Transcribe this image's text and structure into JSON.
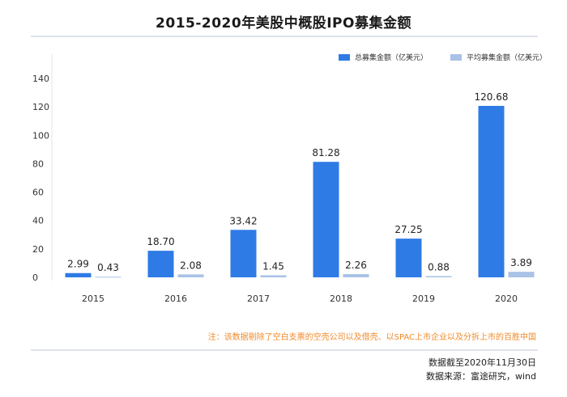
{
  "title": "2015-2020年美股中概股IPO募集金额",
  "note": "注：该数据剔除了空白支票的空壳公司以及借壳、以SPAC上市企业以及分拆上市的百胜中国",
  "footer": {
    "line1": "数据截至2020年11月30日",
    "line2": "数据来源：富途研究，wind"
  },
  "colors": {
    "total": "#2f7be5",
    "average": "#a9c2e6",
    "rule": "#dfe3ea"
  },
  "chart_data": {
    "type": "bar",
    "title": "2015-2020年美股中概股IPO募集金额",
    "categories": [
      "2015",
      "2016",
      "2017",
      "2018",
      "2019",
      "2020"
    ],
    "series": [
      {
        "name": "总募集金额（亿美元）",
        "values": [
          2.99,
          18.7,
          33.42,
          81.28,
          27.25,
          120.68
        ],
        "labels": [
          "2.99",
          "18.70",
          "33.42",
          "81.28",
          "27.25",
          "120.68"
        ]
      },
      {
        "name": "平均募集金额（亿美元）",
        "values": [
          0.43,
          2.08,
          1.45,
          2.26,
          0.88,
          3.89
        ],
        "labels": [
          "0.43",
          "2.08",
          "1.45",
          "2.26",
          "0.88",
          "3.89"
        ]
      }
    ],
    "yticks": [
      "0",
      "20",
      "40",
      "60",
      "80",
      "100",
      "120",
      "140"
    ],
    "ylim": [
      0,
      140
    ],
    "grid": false,
    "legend_position": "top-right"
  }
}
